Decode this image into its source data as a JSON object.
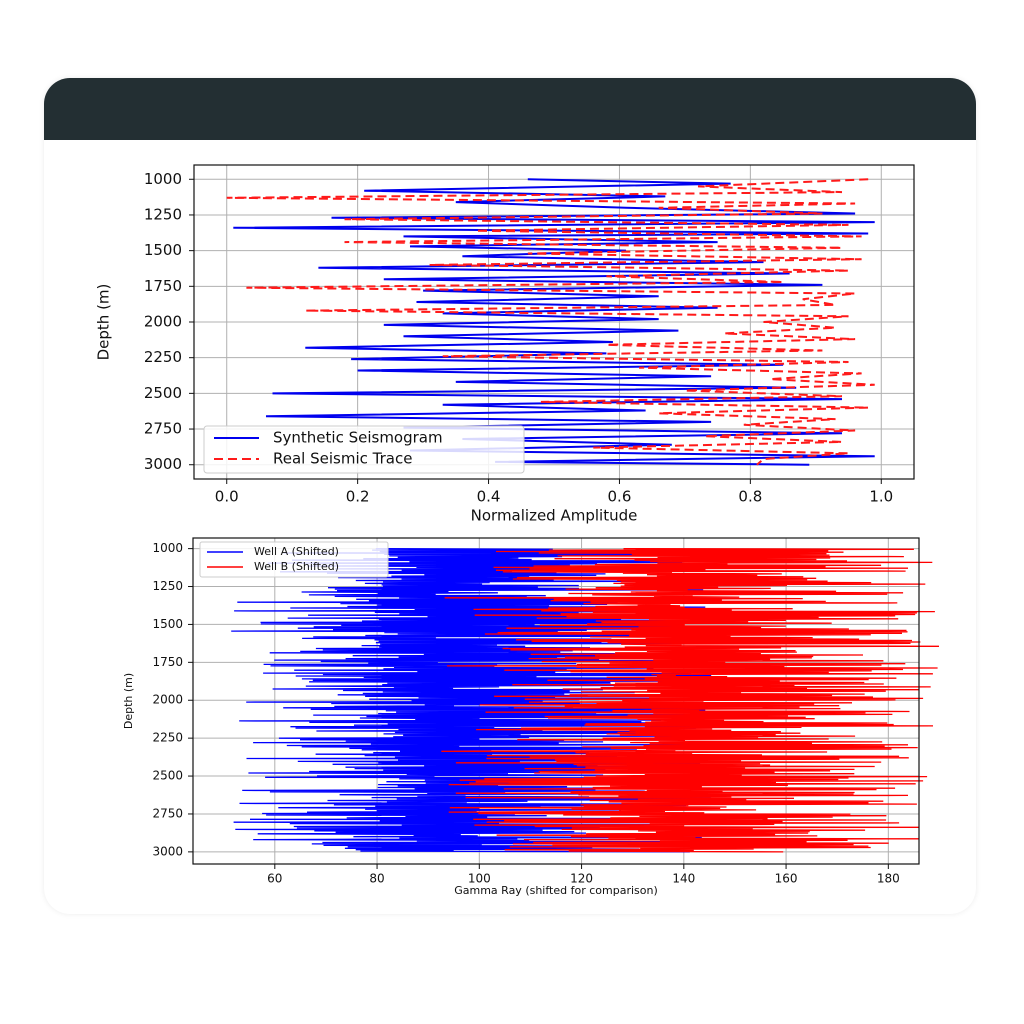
{
  "colors": {
    "header": "#232f33",
    "synthetic": "#0000ee",
    "real": "#ff1a1a",
    "wellA": "#0000ff",
    "wellB": "#ff0000"
  },
  "chart_data": [
    {
      "type": "line",
      "xlabel": "Normalized Amplitude",
      "ylabel": "Depth (m)",
      "xlim": [
        -0.05,
        1.05
      ],
      "ylim": [
        3100,
        900
      ],
      "y_inverted": true,
      "xticks": [
        "0.0",
        "0.2",
        "0.4",
        "0.6",
        "0.8",
        "1.0"
      ],
      "yticks": [
        "1000",
        "1250",
        "1500",
        "1750",
        "2000",
        "2250",
        "2500",
        "2750",
        "3000"
      ],
      "grid": true,
      "legend_position": "lower-left",
      "series": [
        {
          "name": "Synthetic Seismogram",
          "style": "solid",
          "depth": [
            1000,
            1030,
            1080,
            1120,
            1160,
            1200,
            1240,
            1270,
            1300,
            1340,
            1380,
            1400,
            1440,
            1470,
            1500,
            1540,
            1580,
            1620,
            1660,
            1700,
            1740,
            1780,
            1820,
            1860,
            1900,
            1940,
            1980,
            2020,
            2060,
            2100,
            2140,
            2180,
            2220,
            2260,
            2300,
            2340,
            2380,
            2420,
            2460,
            2500,
            2540,
            2580,
            2620,
            2660,
            2700,
            2740,
            2780,
            2820,
            2860,
            2900,
            2940,
            2980,
            3000
          ],
          "values": [
            0.46,
            0.77,
            0.21,
            0.67,
            0.35,
            0.61,
            0.96,
            0.16,
            0.99,
            0.01,
            0.98,
            0.27,
            0.75,
            0.28,
            0.61,
            0.36,
            0.82,
            0.14,
            0.86,
            0.24,
            0.91,
            0.3,
            0.66,
            0.29,
            0.75,
            0.33,
            0.66,
            0.24,
            0.69,
            0.27,
            0.59,
            0.12,
            0.58,
            0.19,
            0.85,
            0.2,
            0.74,
            0.35,
            0.87,
            0.07,
            0.94,
            0.33,
            0.64,
            0.06,
            0.74,
            0.27,
            0.94,
            0.36,
            0.68,
            0.28,
            0.99,
            0.41,
            0.89
          ]
        },
        {
          "name": "Real Seismic Trace",
          "style": "dashed",
          "depth": [
            1000,
            1050,
            1090,
            1130,
            1170,
            1200,
            1240,
            1280,
            1320,
            1360,
            1400,
            1440,
            1480,
            1520,
            1560,
            1600,
            1640,
            1680,
            1720,
            1760,
            1800,
            1840,
            1880,
            1920,
            1960,
            2000,
            2040,
            2080,
            2120,
            2160,
            2200,
            2240,
            2280,
            2320,
            2360,
            2400,
            2440,
            2480,
            2520,
            2560,
            2600,
            2640,
            2680,
            2720,
            2760,
            2800,
            2840,
            2880,
            2920,
            2960,
            3000
          ],
          "values": [
            0.98,
            0.72,
            0.94,
            0.0,
            0.96,
            0.66,
            0.91,
            0.18,
            0.95,
            0.38,
            0.97,
            0.18,
            0.94,
            0.46,
            0.97,
            0.31,
            0.95,
            0.58,
            0.85,
            0.03,
            0.96,
            0.88,
            0.93,
            0.12,
            0.95,
            0.82,
            0.93,
            0.76,
            0.96,
            0.58,
            0.91,
            0.33,
            0.95,
            0.63,
            0.97,
            0.83,
            0.99,
            0.7,
            0.94,
            0.48,
            0.98,
            0.66,
            0.93,
            0.79,
            0.96,
            0.73,
            0.94,
            0.56,
            0.95,
            0.82,
            0.81
          ]
        }
      ]
    },
    {
      "type": "line",
      "xlabel": "Gamma Ray (shifted for comparison)",
      "ylabel": "Depth (m)",
      "xlim": [
        44,
        186
      ],
      "ylim": [
        3080,
        930
      ],
      "y_inverted": true,
      "xticks": [
        "60",
        "80",
        "100",
        "120",
        "140",
        "160",
        "180"
      ],
      "yticks": [
        "1000",
        "1250",
        "1500",
        "1750",
        "2000",
        "2250",
        "2500",
        "2750",
        "3000"
      ],
      "grid": true,
      "legend_position": "top-left",
      "depth_start": 1000,
      "depth_end": 3000,
      "series": [
        {
          "name": "Well A (Shifted)",
          "range": [
            50,
            146
          ],
          "center": 90
        },
        {
          "name": "Well B (Shifted)",
          "range": [
            92,
            190
          ],
          "center": 136
        }
      ]
    }
  ]
}
